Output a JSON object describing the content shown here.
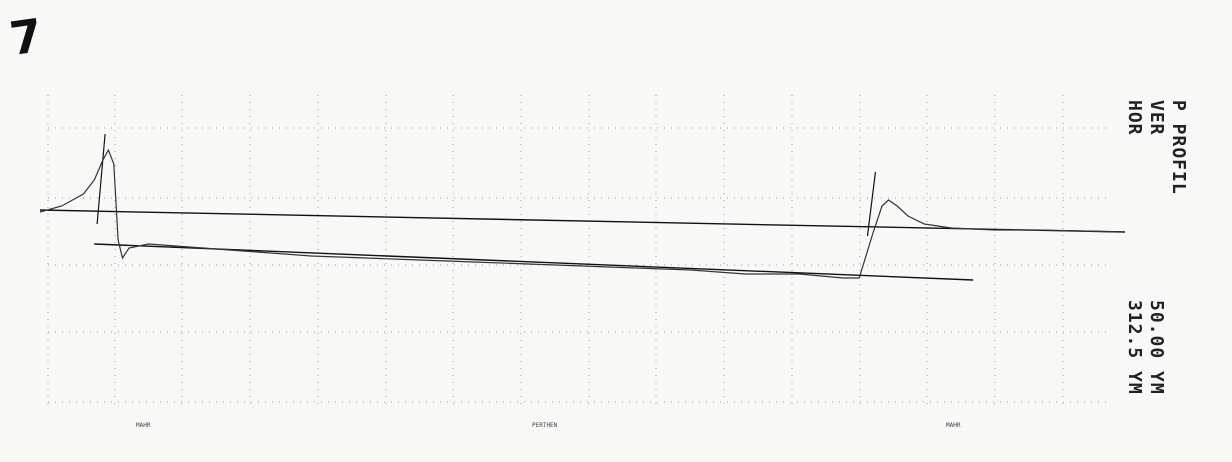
{
  "sheet_number": "7",
  "side_labels": {
    "profile_title": "P PROFIL",
    "ver_label": "VER",
    "hor_label": "HOR",
    "ver_value": "50.00 YM",
    "hor_value": "312.5 YM"
  },
  "bottom_marks": {
    "left": "MAHR",
    "center": "PERTHEN",
    "right": "MAHR"
  },
  "chart_data": {
    "type": "line",
    "title": "P PROFIL",
    "xlabel": "",
    "ylabel": "",
    "grid": true,
    "series": [
      {
        "values": [
          [
            0,
            0
          ],
          [
            2,
            0.3
          ],
          [
            4,
            0.9
          ],
          [
            5,
            1.6
          ],
          [
            5.8,
            2.6
          ],
          [
            6.3,
            3.1
          ],
          [
            6.8,
            2.4
          ],
          [
            7.2,
            -1.4
          ],
          [
            7.6,
            -2.3
          ],
          [
            8.2,
            -1.8
          ],
          [
            10,
            -1.6
          ],
          [
            15,
            -1.8
          ],
          [
            20,
            -2.0
          ],
          [
            25,
            -2.2
          ],
          [
            30,
            -2.3
          ],
          [
            35,
            -2.4
          ],
          [
            40,
            -2.5
          ],
          [
            45,
            -2.6
          ],
          [
            50,
            -2.7
          ],
          [
            55,
            -2.8
          ],
          [
            60,
            -2.9
          ],
          [
            65,
            -3.1
          ],
          [
            70,
            -3.1
          ],
          [
            74,
            -3.3
          ],
          [
            75.5,
            -3.3
          ],
          [
            76.8,
            -1.0
          ],
          [
            77.6,
            0.3
          ],
          [
            78.2,
            0.6
          ],
          [
            79,
            0.3
          ],
          [
            80,
            -0.2
          ],
          [
            81.5,
            -0.6
          ],
          [
            84,
            -0.8
          ],
          [
            88,
            -0.9
          ],
          [
            92,
            -0.9
          ],
          [
            100,
            -1.0
          ]
        ]
      }
    ],
    "reference_lines": [
      {
        "from": [
          0,
          0.1
        ],
        "to": [
          100,
          -1.0
        ]
      },
      {
        "from": [
          5,
          -1.6
        ],
        "to": [
          86,
          -3.4
        ]
      }
    ],
    "markers": [
      {
        "x": 6.0,
        "y_from": -0.6,
        "y_to": 3.9
      },
      {
        "x": 77.0,
        "y_from": -1.2,
        "y_to": 2.0
      }
    ]
  }
}
